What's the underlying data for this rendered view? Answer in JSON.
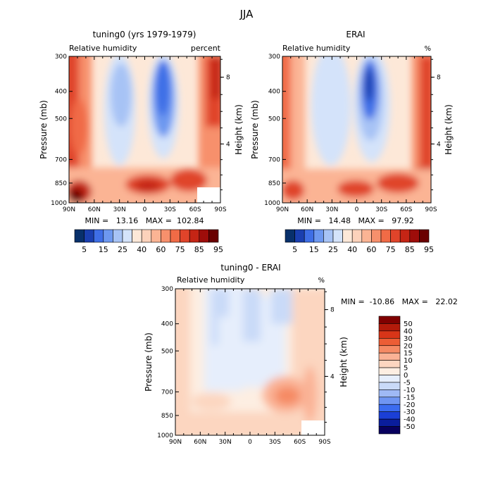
{
  "figure": {
    "title": "JJA"
  },
  "colors": {
    "abs_scale": [
      "#08306b",
      "#1a3fb0",
      "#3e6ee6",
      "#6d98f0",
      "#a7c3f5",
      "#d4e3fa",
      "#fde8d8",
      "#fcd2bb",
      "#fbb494",
      "#f7906c",
      "#f06b46",
      "#e0442a",
      "#c52515",
      "#9e0d0a",
      "#6a0000"
    ],
    "diff_scale": [
      "#08005e",
      "#0a1d9c",
      "#1b3fd6",
      "#3b6cf0",
      "#6f95f2",
      "#9fb9f5",
      "#c9daf8",
      "#e6eefc",
      "#fdeee2",
      "#fcd6c0",
      "#fab295",
      "#f58a64",
      "#ec5d35",
      "#d83518",
      "#b31a0a",
      "#800000"
    ]
  },
  "chart_data": [
    {
      "type": "heatmap",
      "title": "tuning0 (yrs 1979-1979)",
      "subtitle_left": "Relative humidity",
      "subtitle_right": "percent",
      "ylabel": "Pressure (mb)",
      "y2label": "Height (km)",
      "x_ticks": [
        "90N",
        "60N",
        "30N",
        "0",
        "30S",
        "60S",
        "90S"
      ],
      "y_ticks": [
        "300",
        "400",
        "500",
        "700",
        "850",
        "1000"
      ],
      "y2_ticks": [
        "8",
        "4"
      ],
      "stats": "MIN =   13.16   MAX =  102.84",
      "colorbar_labels": [
        "5",
        "15",
        "25",
        "40",
        "60",
        "75",
        "85",
        "95"
      ],
      "ylim": [
        1000,
        300
      ],
      "xlim": [
        90,
        -90
      ]
    },
    {
      "type": "heatmap",
      "title": "ERAI",
      "subtitle_left": "Relative humidity",
      "subtitle_right": "%",
      "ylabel": "Pressure (mb)",
      "y2label": "Height (km)",
      "x_ticks": [
        "90N",
        "60N",
        "30N",
        "0",
        "30S",
        "60S",
        "90S"
      ],
      "y_ticks": [
        "300",
        "400",
        "500",
        "700",
        "850",
        "1000"
      ],
      "y2_ticks": [
        "8",
        "4"
      ],
      "stats": "MIN =   14.48   MAX =   97.92",
      "colorbar_labels": [
        "5",
        "15",
        "25",
        "40",
        "60",
        "75",
        "85",
        "95"
      ],
      "ylim": [
        1000,
        300
      ],
      "xlim": [
        90,
        -90
      ]
    },
    {
      "type": "heatmap",
      "title": "tuning0 - ERAI",
      "subtitle_left": "Relative humidity",
      "subtitle_right": "%",
      "ylabel": "Pressure (mb)",
      "y2label": "Height (km)",
      "x_ticks": [
        "90N",
        "60N",
        "30N",
        "0",
        "30S",
        "60S",
        "90S"
      ],
      "y_ticks": [
        "300",
        "400",
        "500",
        "700",
        "850",
        "1000"
      ],
      "y2_ticks": [
        "8",
        "4"
      ],
      "stats": "MIN =  -10.86   MAX =   22.02",
      "colorbar_labels": [
        "50",
        "40",
        "30",
        "20",
        "15",
        "10",
        "5",
        "0",
        "-5",
        "-10",
        "-15",
        "-20",
        "-30",
        "-40",
        "-50"
      ],
      "ylim": [
        1000,
        300
      ],
      "xlim": [
        90,
        -90
      ]
    }
  ]
}
